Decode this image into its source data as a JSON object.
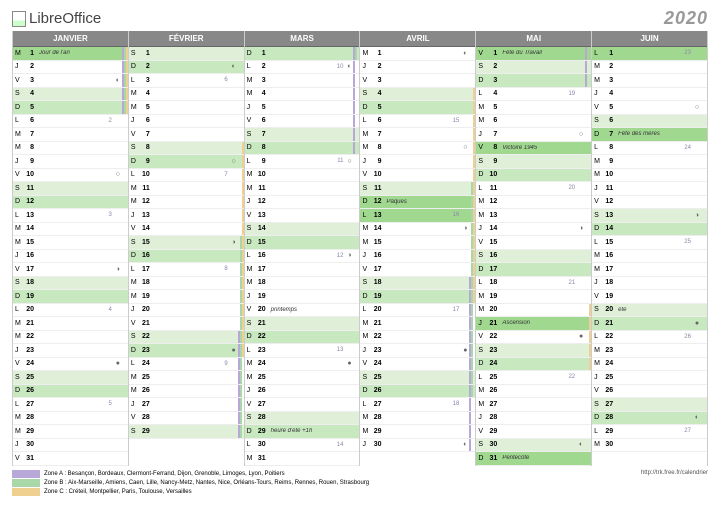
{
  "logo_text_a": "Libre",
  "logo_text_b": "Office",
  "year": "2020",
  "url": "http://trk.free.fr/calendrier",
  "colors": {
    "zone_a": "#b8a8d8",
    "zone_b": "#a8d8a8",
    "zone_c": "#f0d090",
    "month_head": "#888888",
    "sunday": "#c8e8c0",
    "saturday": "#e0f0d8",
    "holiday": "#a0d890"
  },
  "legend": [
    {
      "cls": "za",
      "text": "Zone A : Besançon, Bordeaux, Clermont-Ferrand, Dijon, Grenoble, Limoges, Lyon, Poitiers"
    },
    {
      "cls": "zb",
      "text": "Zone B : Aix-Marseille, Amiens, Caen, Lille, Nancy-Metz, Nantes, Nice, Orléans-Tours, Reims, Rennes, Rouen, Strasbourg"
    },
    {
      "cls": "zc",
      "text": "Zone C : Créteil, Montpellier, Paris, Toulouse, Versailles"
    }
  ],
  "months": [
    {
      "name": "JANVIER",
      "days": [
        {
          "w": "M",
          "n": 1,
          "hl": "hl-hol",
          "note": "Jour de l'an",
          "za": 1,
          "zb": 1,
          "zc": 1
        },
        {
          "w": "J",
          "n": 2,
          "za": 1,
          "zb": 1,
          "zc": 1
        },
        {
          "w": "V",
          "n": 3,
          "moon": "◐",
          "za": 1,
          "zb": 1,
          "zc": 1
        },
        {
          "w": "S",
          "n": 4,
          "hl": "hl-sat",
          "za": 1,
          "zb": 1,
          "zc": 1
        },
        {
          "w": "D",
          "n": 5,
          "hl": "hl-sun",
          "za": 1,
          "zb": 1,
          "zc": 1
        },
        {
          "w": "L",
          "n": 6,
          "wk": "2"
        },
        {
          "w": "M",
          "n": 7
        },
        {
          "w": "M",
          "n": 8
        },
        {
          "w": "J",
          "n": 9
        },
        {
          "w": "V",
          "n": 10,
          "moon": "○"
        },
        {
          "w": "S",
          "n": 11,
          "hl": "hl-sat"
        },
        {
          "w": "D",
          "n": 12,
          "hl": "hl-sun"
        },
        {
          "w": "L",
          "n": 13,
          "wk": "3"
        },
        {
          "w": "M",
          "n": 14
        },
        {
          "w": "M",
          "n": 15
        },
        {
          "w": "J",
          "n": 16
        },
        {
          "w": "V",
          "n": 17,
          "moon": "◑"
        },
        {
          "w": "S",
          "n": 18,
          "hl": "hl-sat"
        },
        {
          "w": "D",
          "n": 19,
          "hl": "hl-sun"
        },
        {
          "w": "L",
          "n": 20,
          "wk": "4"
        },
        {
          "w": "M",
          "n": 21
        },
        {
          "w": "M",
          "n": 22
        },
        {
          "w": "J",
          "n": 23
        },
        {
          "w": "V",
          "n": 24,
          "moon": "●"
        },
        {
          "w": "S",
          "n": 25,
          "hl": "hl-sat"
        },
        {
          "w": "D",
          "n": 26,
          "hl": "hl-sun"
        },
        {
          "w": "L",
          "n": 27,
          "wk": "5"
        },
        {
          "w": "M",
          "n": 28
        },
        {
          "w": "M",
          "n": 29
        },
        {
          "w": "J",
          "n": 30
        },
        {
          "w": "V",
          "n": 31
        }
      ]
    },
    {
      "name": "FÉVRIER",
      "days": [
        {
          "w": "S",
          "n": 1,
          "hl": "hl-sat"
        },
        {
          "w": "D",
          "n": 2,
          "hl": "hl-sun",
          "moon": "◐"
        },
        {
          "w": "L",
          "n": 3,
          "wk": "6"
        },
        {
          "w": "M",
          "n": 4
        },
        {
          "w": "M",
          "n": 5
        },
        {
          "w": "J",
          "n": 6
        },
        {
          "w": "V",
          "n": 7
        },
        {
          "w": "S",
          "n": 8,
          "hl": "hl-sat",
          "zc": 1
        },
        {
          "w": "D",
          "n": 9,
          "hl": "hl-sun",
          "moon": "○",
          "zc": 1
        },
        {
          "w": "L",
          "n": 10,
          "wk": "7",
          "zc": 1
        },
        {
          "w": "M",
          "n": 11,
          "zc": 1
        },
        {
          "w": "M",
          "n": 12,
          "zc": 1
        },
        {
          "w": "J",
          "n": 13,
          "zc": 1
        },
        {
          "w": "V",
          "n": 14,
          "zc": 1
        },
        {
          "w": "S",
          "n": 15,
          "hl": "hl-sat",
          "zb": 1,
          "zc": 1,
          "moon": "◑"
        },
        {
          "w": "D",
          "n": 16,
          "hl": "hl-sun",
          "zb": 1,
          "zc": 1
        },
        {
          "w": "L",
          "n": 17,
          "wk": "8",
          "zb": 1,
          "zc": 1
        },
        {
          "w": "M",
          "n": 18,
          "zb": 1,
          "zc": 1
        },
        {
          "w": "M",
          "n": 19,
          "zb": 1,
          "zc": 1
        },
        {
          "w": "J",
          "n": 20,
          "zb": 1,
          "zc": 1
        },
        {
          "w": "V",
          "n": 21,
          "zb": 1,
          "zc": 1
        },
        {
          "w": "S",
          "n": 22,
          "hl": "hl-sat",
          "za": 1,
          "zb": 1,
          "zc": 1
        },
        {
          "w": "D",
          "n": 23,
          "hl": "hl-sun",
          "moon": "●",
          "za": 1,
          "zb": 1,
          "zc": 1
        },
        {
          "w": "L",
          "n": 24,
          "wk": "9",
          "za": 1,
          "zb": 1
        },
        {
          "w": "M",
          "n": 25,
          "za": 1,
          "zb": 1
        },
        {
          "w": "M",
          "n": 26,
          "za": 1,
          "zb": 1
        },
        {
          "w": "J",
          "n": 27,
          "za": 1,
          "zb": 1
        },
        {
          "w": "V",
          "n": 28,
          "za": 1,
          "zb": 1
        },
        {
          "w": "S",
          "n": 29,
          "hl": "hl-sat",
          "za": 1,
          "zb": 1
        }
      ]
    },
    {
      "name": "MARS",
      "days": [
        {
          "w": "D",
          "n": 1,
          "hl": "hl-sun",
          "za": 1,
          "zb": 1
        },
        {
          "w": "L",
          "n": 2,
          "wk": "10",
          "moon": "◐",
          "za": 1
        },
        {
          "w": "M",
          "n": 3,
          "za": 1
        },
        {
          "w": "M",
          "n": 4,
          "za": 1
        },
        {
          "w": "J",
          "n": 5,
          "za": 1
        },
        {
          "w": "V",
          "n": 6,
          "za": 1
        },
        {
          "w": "S",
          "n": 7,
          "hl": "hl-sat",
          "za": 1
        },
        {
          "w": "D",
          "n": 8,
          "hl": "hl-sun",
          "za": 1
        },
        {
          "w": "L",
          "n": 9,
          "wk": "11",
          "moon": "○"
        },
        {
          "w": "M",
          "n": 10
        },
        {
          "w": "M",
          "n": 11
        },
        {
          "w": "J",
          "n": 12
        },
        {
          "w": "V",
          "n": 13
        },
        {
          "w": "S",
          "n": 14,
          "hl": "hl-sat"
        },
        {
          "w": "D",
          "n": 15,
          "hl": "hl-sun"
        },
        {
          "w": "L",
          "n": 16,
          "wk": "12",
          "moon": "◑"
        },
        {
          "w": "M",
          "n": 17
        },
        {
          "w": "M",
          "n": 18
        },
        {
          "w": "J",
          "n": 19
        },
        {
          "w": "V",
          "n": 20,
          "note": "printemps"
        },
        {
          "w": "S",
          "n": 21,
          "hl": "hl-sat"
        },
        {
          "w": "D",
          "n": 22,
          "hl": "hl-sun"
        },
        {
          "w": "L",
          "n": 23,
          "wk": "13"
        },
        {
          "w": "M",
          "n": 24,
          "moon": "●"
        },
        {
          "w": "M",
          "n": 25
        },
        {
          "w": "J",
          "n": 26
        },
        {
          "w": "V",
          "n": 27
        },
        {
          "w": "S",
          "n": 28,
          "hl": "hl-sat"
        },
        {
          "w": "D",
          "n": 29,
          "hl": "hl-sun",
          "note": "heure d'été +1h"
        },
        {
          "w": "L",
          "n": 30,
          "wk": "14"
        },
        {
          "w": "M",
          "n": 31
        }
      ]
    },
    {
      "name": "AVRIL",
      "days": [
        {
          "w": "M",
          "n": 1,
          "moon": "◐"
        },
        {
          "w": "J",
          "n": 2
        },
        {
          "w": "V",
          "n": 3
        },
        {
          "w": "S",
          "n": 4,
          "hl": "hl-sat",
          "zc": 1
        },
        {
          "w": "D",
          "n": 5,
          "hl": "hl-sun",
          "zc": 1
        },
        {
          "w": "L",
          "n": 6,
          "wk": "15",
          "zc": 1
        },
        {
          "w": "M",
          "n": 7,
          "zc": 1
        },
        {
          "w": "M",
          "n": 8,
          "moon": "○",
          "zc": 1
        },
        {
          "w": "J",
          "n": 9,
          "zc": 1
        },
        {
          "w": "V",
          "n": 10,
          "zc": 1
        },
        {
          "w": "S",
          "n": 11,
          "hl": "hl-sat",
          "zb": 1,
          "zc": 1
        },
        {
          "w": "D",
          "n": 12,
          "hl": "hl-hol",
          "note": "Pâques",
          "zb": 1,
          "zc": 1
        },
        {
          "w": "L",
          "n": 13,
          "hl": "hl-hol",
          "wk": "16",
          "zb": 1,
          "zc": 1
        },
        {
          "w": "M",
          "n": 14,
          "moon": "◑",
          "zb": 1,
          "zc": 1
        },
        {
          "w": "M",
          "n": 15,
          "zb": 1,
          "zc": 1
        },
        {
          "w": "J",
          "n": 16,
          "zb": 1,
          "zc": 1
        },
        {
          "w": "V",
          "n": 17,
          "zb": 1,
          "zc": 1
        },
        {
          "w": "S",
          "n": 18,
          "hl": "hl-sat",
          "za": 1,
          "zb": 1,
          "zc": 1
        },
        {
          "w": "D",
          "n": 19,
          "hl": "hl-sun",
          "za": 1,
          "zb": 1,
          "zc": 1
        },
        {
          "w": "L",
          "n": 20,
          "wk": "17",
          "za": 1,
          "zb": 1
        },
        {
          "w": "M",
          "n": 21,
          "za": 1,
          "zb": 1
        },
        {
          "w": "M",
          "n": 22,
          "za": 1,
          "zb": 1
        },
        {
          "w": "J",
          "n": 23,
          "moon": "●",
          "za": 1,
          "zb": 1
        },
        {
          "w": "V",
          "n": 24,
          "za": 1,
          "zb": 1
        },
        {
          "w": "S",
          "n": 25,
          "hl": "hl-sat",
          "za": 1,
          "zb": 1
        },
        {
          "w": "D",
          "n": 26,
          "hl": "hl-sun",
          "za": 1,
          "zb": 1
        },
        {
          "w": "L",
          "n": 27,
          "wk": "18",
          "za": 1
        },
        {
          "w": "M",
          "n": 28,
          "za": 1
        },
        {
          "w": "M",
          "n": 29,
          "za": 1
        },
        {
          "w": "J",
          "n": 30,
          "moon": "◐",
          "za": 1
        }
      ]
    },
    {
      "name": "MAI",
      "days": [
        {
          "w": "V",
          "n": 1,
          "hl": "hl-hol",
          "note": "Fête du Travail",
          "za": 1
        },
        {
          "w": "S",
          "n": 2,
          "hl": "hl-sat",
          "za": 1
        },
        {
          "w": "D",
          "n": 3,
          "hl": "hl-sun",
          "za": 1
        },
        {
          "w": "L",
          "n": 4,
          "wk": "19"
        },
        {
          "w": "M",
          "n": 5
        },
        {
          "w": "M",
          "n": 6
        },
        {
          "w": "J",
          "n": 7,
          "moon": "○"
        },
        {
          "w": "V",
          "n": 8,
          "hl": "hl-hol",
          "note": "Victoire 1945"
        },
        {
          "w": "S",
          "n": 9,
          "hl": "hl-sat"
        },
        {
          "w": "D",
          "n": 10,
          "hl": "hl-sun"
        },
        {
          "w": "L",
          "n": 11,
          "wk": "20"
        },
        {
          "w": "M",
          "n": 12
        },
        {
          "w": "M",
          "n": 13
        },
        {
          "w": "J",
          "n": 14,
          "moon": "◑"
        },
        {
          "w": "V",
          "n": 15
        },
        {
          "w": "S",
          "n": 16,
          "hl": "hl-sat"
        },
        {
          "w": "D",
          "n": 17,
          "hl": "hl-sun"
        },
        {
          "w": "L",
          "n": 18,
          "wk": "21"
        },
        {
          "w": "M",
          "n": 19
        },
        {
          "w": "M",
          "n": 20,
          "zc": 1
        },
        {
          "w": "J",
          "n": 21,
          "hl": "hl-hol",
          "note": "Ascension",
          "zc": 1
        },
        {
          "w": "V",
          "n": 22,
          "moon": "●",
          "zc": 1
        },
        {
          "w": "S",
          "n": 23,
          "hl": "hl-sat",
          "zc": 1
        },
        {
          "w": "D",
          "n": 24,
          "hl": "hl-sun",
          "zc": 1
        },
        {
          "w": "L",
          "n": 25,
          "wk": "22"
        },
        {
          "w": "M",
          "n": 26
        },
        {
          "w": "M",
          "n": 27
        },
        {
          "w": "J",
          "n": 28
        },
        {
          "w": "V",
          "n": 29
        },
        {
          "w": "S",
          "n": 30,
          "hl": "hl-sat",
          "moon": "◐"
        },
        {
          "w": "D",
          "n": 31,
          "hl": "hl-hol",
          "note": "Pentecôte"
        }
      ]
    },
    {
      "name": "JUIN",
      "days": [
        {
          "w": "L",
          "n": 1,
          "hl": "hl-hol",
          "wk": "23"
        },
        {
          "w": "M",
          "n": 2
        },
        {
          "w": "M",
          "n": 3
        },
        {
          "w": "J",
          "n": 4
        },
        {
          "w": "V",
          "n": 5,
          "moon": "○"
        },
        {
          "w": "S",
          "n": 6,
          "hl": "hl-sat"
        },
        {
          "w": "D",
          "n": 7,
          "hl": "hl-hol",
          "note": "Fête des mères"
        },
        {
          "w": "L",
          "n": 8,
          "wk": "24"
        },
        {
          "w": "M",
          "n": 9
        },
        {
          "w": "M",
          "n": 10
        },
        {
          "w": "J",
          "n": 11
        },
        {
          "w": "V",
          "n": 12
        },
        {
          "w": "S",
          "n": 13,
          "hl": "hl-sat",
          "moon": "◑"
        },
        {
          "w": "D",
          "n": 14,
          "hl": "hl-sun"
        },
        {
          "w": "L",
          "n": 15,
          "wk": "25"
        },
        {
          "w": "M",
          "n": 16
        },
        {
          "w": "M",
          "n": 17
        },
        {
          "w": "J",
          "n": 18
        },
        {
          "w": "V",
          "n": 19
        },
        {
          "w": "S",
          "n": 20,
          "hl": "hl-sat",
          "note": "été"
        },
        {
          "w": "D",
          "n": 21,
          "hl": "hl-sun",
          "moon": "●"
        },
        {
          "w": "L",
          "n": 22,
          "wk": "26"
        },
        {
          "w": "M",
          "n": 23
        },
        {
          "w": "M",
          "n": 24
        },
        {
          "w": "J",
          "n": 25
        },
        {
          "w": "V",
          "n": 26
        },
        {
          "w": "S",
          "n": 27,
          "hl": "hl-sat"
        },
        {
          "w": "D",
          "n": 28,
          "hl": "hl-sun",
          "moon": "◐"
        },
        {
          "w": "L",
          "n": 29,
          "wk": "27"
        },
        {
          "w": "M",
          "n": 30
        }
      ]
    }
  ]
}
